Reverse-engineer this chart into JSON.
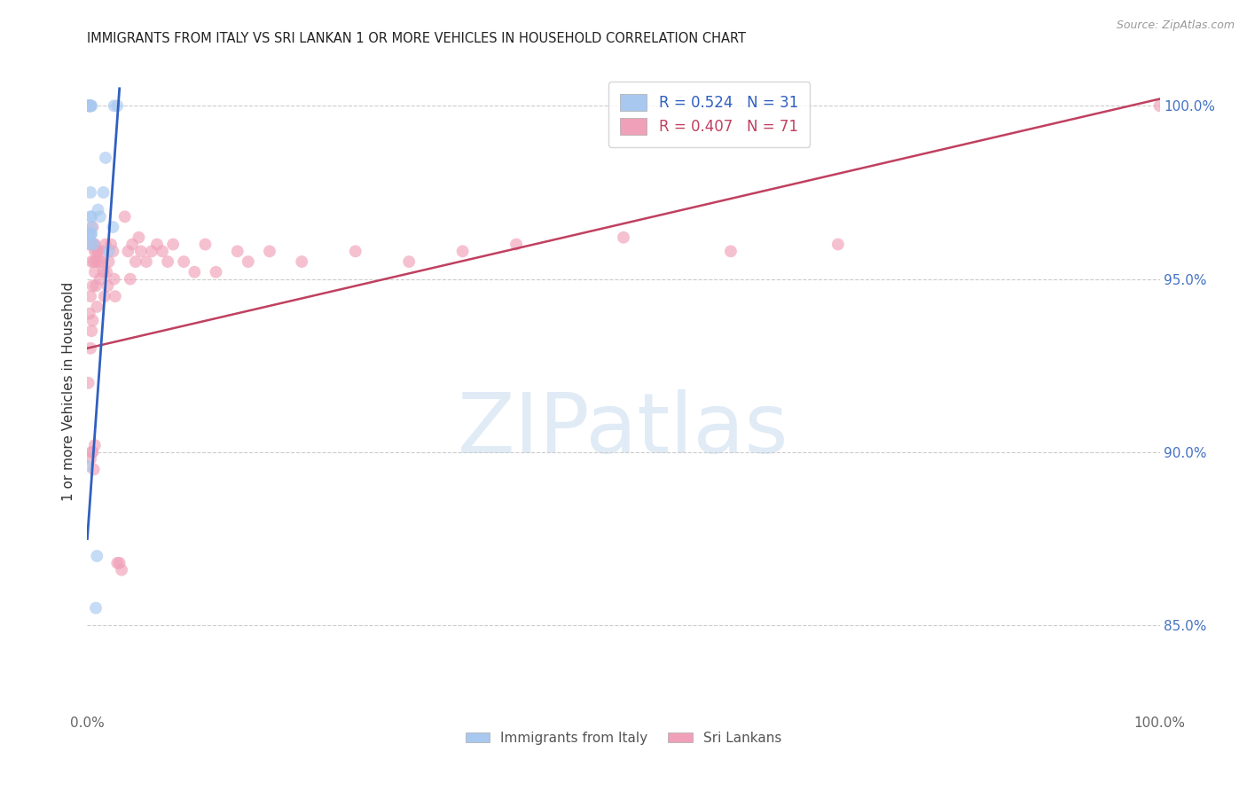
{
  "title": "IMMIGRANTS FROM ITALY VS SRI LANKAN 1 OR MORE VEHICLES IN HOUSEHOLD CORRELATION CHART",
  "source": "Source: ZipAtlas.com",
  "ylabel": "1 or more Vehicles in Household",
  "y_tick_labels_right": [
    "100.0%",
    "95.0%",
    "90.0%",
    "85.0%"
  ],
  "y_tick_positions": [
    1.0,
    0.95,
    0.9,
    0.85
  ],
  "legend_italy_label": "Immigrants from Italy",
  "legend_sri_label": "Sri Lankans",
  "italy_color": "#A8C8F0",
  "sri_color": "#F0A0B8",
  "italy_line_color": "#3060C0",
  "sri_line_color": "#C04060",
  "marker_size": 100,
  "italy_alpha": 0.65,
  "sri_alpha": 0.65,
  "italy_x": [
    0.0,
    0.001,
    0.001,
    0.002,
    0.002,
    0.002,
    0.002,
    0.002,
    0.003,
    0.003,
    0.003,
    0.003,
    0.003,
    0.003,
    0.003,
    0.003,
    0.004,
    0.004,
    0.004,
    0.004,
    0.006,
    0.008,
    0.009,
    0.01,
    0.012,
    0.015,
    0.017,
    0.02,
    0.024,
    0.025,
    0.028
  ],
  "italy_y": [
    0.896,
    1.0,
    1.0,
    1.0,
    1.0,
    1.0,
    1.0,
    0.963,
    1.0,
    1.0,
    1.0,
    0.975,
    0.968,
    0.963,
    0.963,
    0.96,
    1.0,
    0.968,
    0.965,
    0.963,
    0.96,
    0.855,
    0.87,
    0.97,
    0.968,
    0.975,
    0.985,
    0.958,
    0.965,
    1.0,
    1.0
  ],
  "sri_x": [
    0.001,
    0.002,
    0.002,
    0.003,
    0.003,
    0.004,
    0.004,
    0.005,
    0.005,
    0.005,
    0.006,
    0.006,
    0.007,
    0.007,
    0.007,
    0.008,
    0.008,
    0.009,
    0.009,
    0.01,
    0.011,
    0.012,
    0.013,
    0.014,
    0.015,
    0.016,
    0.017,
    0.018,
    0.019,
    0.02,
    0.022,
    0.024,
    0.025,
    0.026,
    0.028,
    0.03,
    0.032,
    0.035,
    0.038,
    0.04,
    0.042,
    0.045,
    0.048,
    0.05,
    0.055,
    0.06,
    0.065,
    0.07,
    0.075,
    0.08,
    0.09,
    0.1,
    0.11,
    0.12,
    0.14,
    0.15,
    0.17,
    0.2,
    0.25,
    0.3,
    0.35,
    0.4,
    0.5,
    0.6,
    0.7,
    1.0,
    0.003,
    0.004,
    0.005,
    0.006,
    0.007
  ],
  "sri_y": [
    0.92,
    0.96,
    0.94,
    0.93,
    0.945,
    0.955,
    0.935,
    0.948,
    0.938,
    0.965,
    0.955,
    0.96,
    0.952,
    0.96,
    0.958,
    0.955,
    0.948,
    0.958,
    0.942,
    0.958,
    0.955,
    0.95,
    0.955,
    0.958,
    0.952,
    0.945,
    0.96,
    0.952,
    0.948,
    0.955,
    0.96,
    0.958,
    0.95,
    0.945,
    0.868,
    0.868,
    0.866,
    0.968,
    0.958,
    0.95,
    0.96,
    0.955,
    0.962,
    0.958,
    0.955,
    0.958,
    0.96,
    0.958,
    0.955,
    0.96,
    0.955,
    0.952,
    0.96,
    0.952,
    0.958,
    0.955,
    0.958,
    0.955,
    0.958,
    0.955,
    0.958,
    0.96,
    0.962,
    0.958,
    0.96,
    1.0,
    0.898,
    0.9,
    0.9,
    0.895,
    0.902
  ],
  "watermark_text": "ZIPatlas",
  "background_color": "#FFFFFF",
  "xlim": [
    0.0,
    1.0
  ],
  "ylim": [
    0.825,
    1.01
  ],
  "italy_line_x": [
    0.0,
    0.03
  ],
  "italy_line_y": [
    0.875,
    1.005
  ],
  "sri_line_x": [
    0.0,
    1.0
  ],
  "sri_line_y": [
    0.93,
    1.002
  ]
}
